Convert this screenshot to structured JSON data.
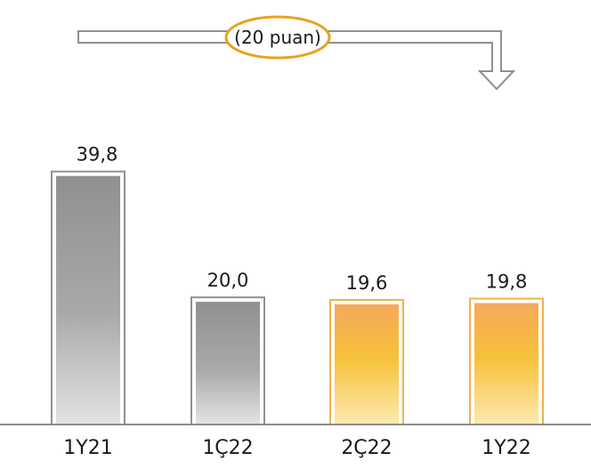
{
  "chart_data": {
    "type": "bar",
    "categories": [
      "1Y21",
      "1Ç22",
      "2Ç22",
      "1Y22"
    ],
    "values": [
      39.8,
      20.0,
      19.6,
      19.8
    ],
    "value_labels": [
      "39,8",
      "20,0",
      "19,6",
      "19,8"
    ],
    "ylim": [
      0,
      42
    ],
    "grid": false,
    "bar_styles": [
      "grey",
      "grey",
      "orange",
      "orange"
    ],
    "annotation": "(20 puan)"
  },
  "colors": {
    "grey_top": "#8f9092",
    "grey_bottom": "#e2e3e4",
    "grey_border": "#8f9092",
    "orange_top": "#f4a95a",
    "orange_mid": "#f7c13a",
    "orange_bottom": "#fde9b0",
    "orange_border": "#f2b24a",
    "accent_ellipse": "#e9a21f",
    "arrow_stroke": "#8f9092",
    "axis": "#8a8a8a"
  }
}
